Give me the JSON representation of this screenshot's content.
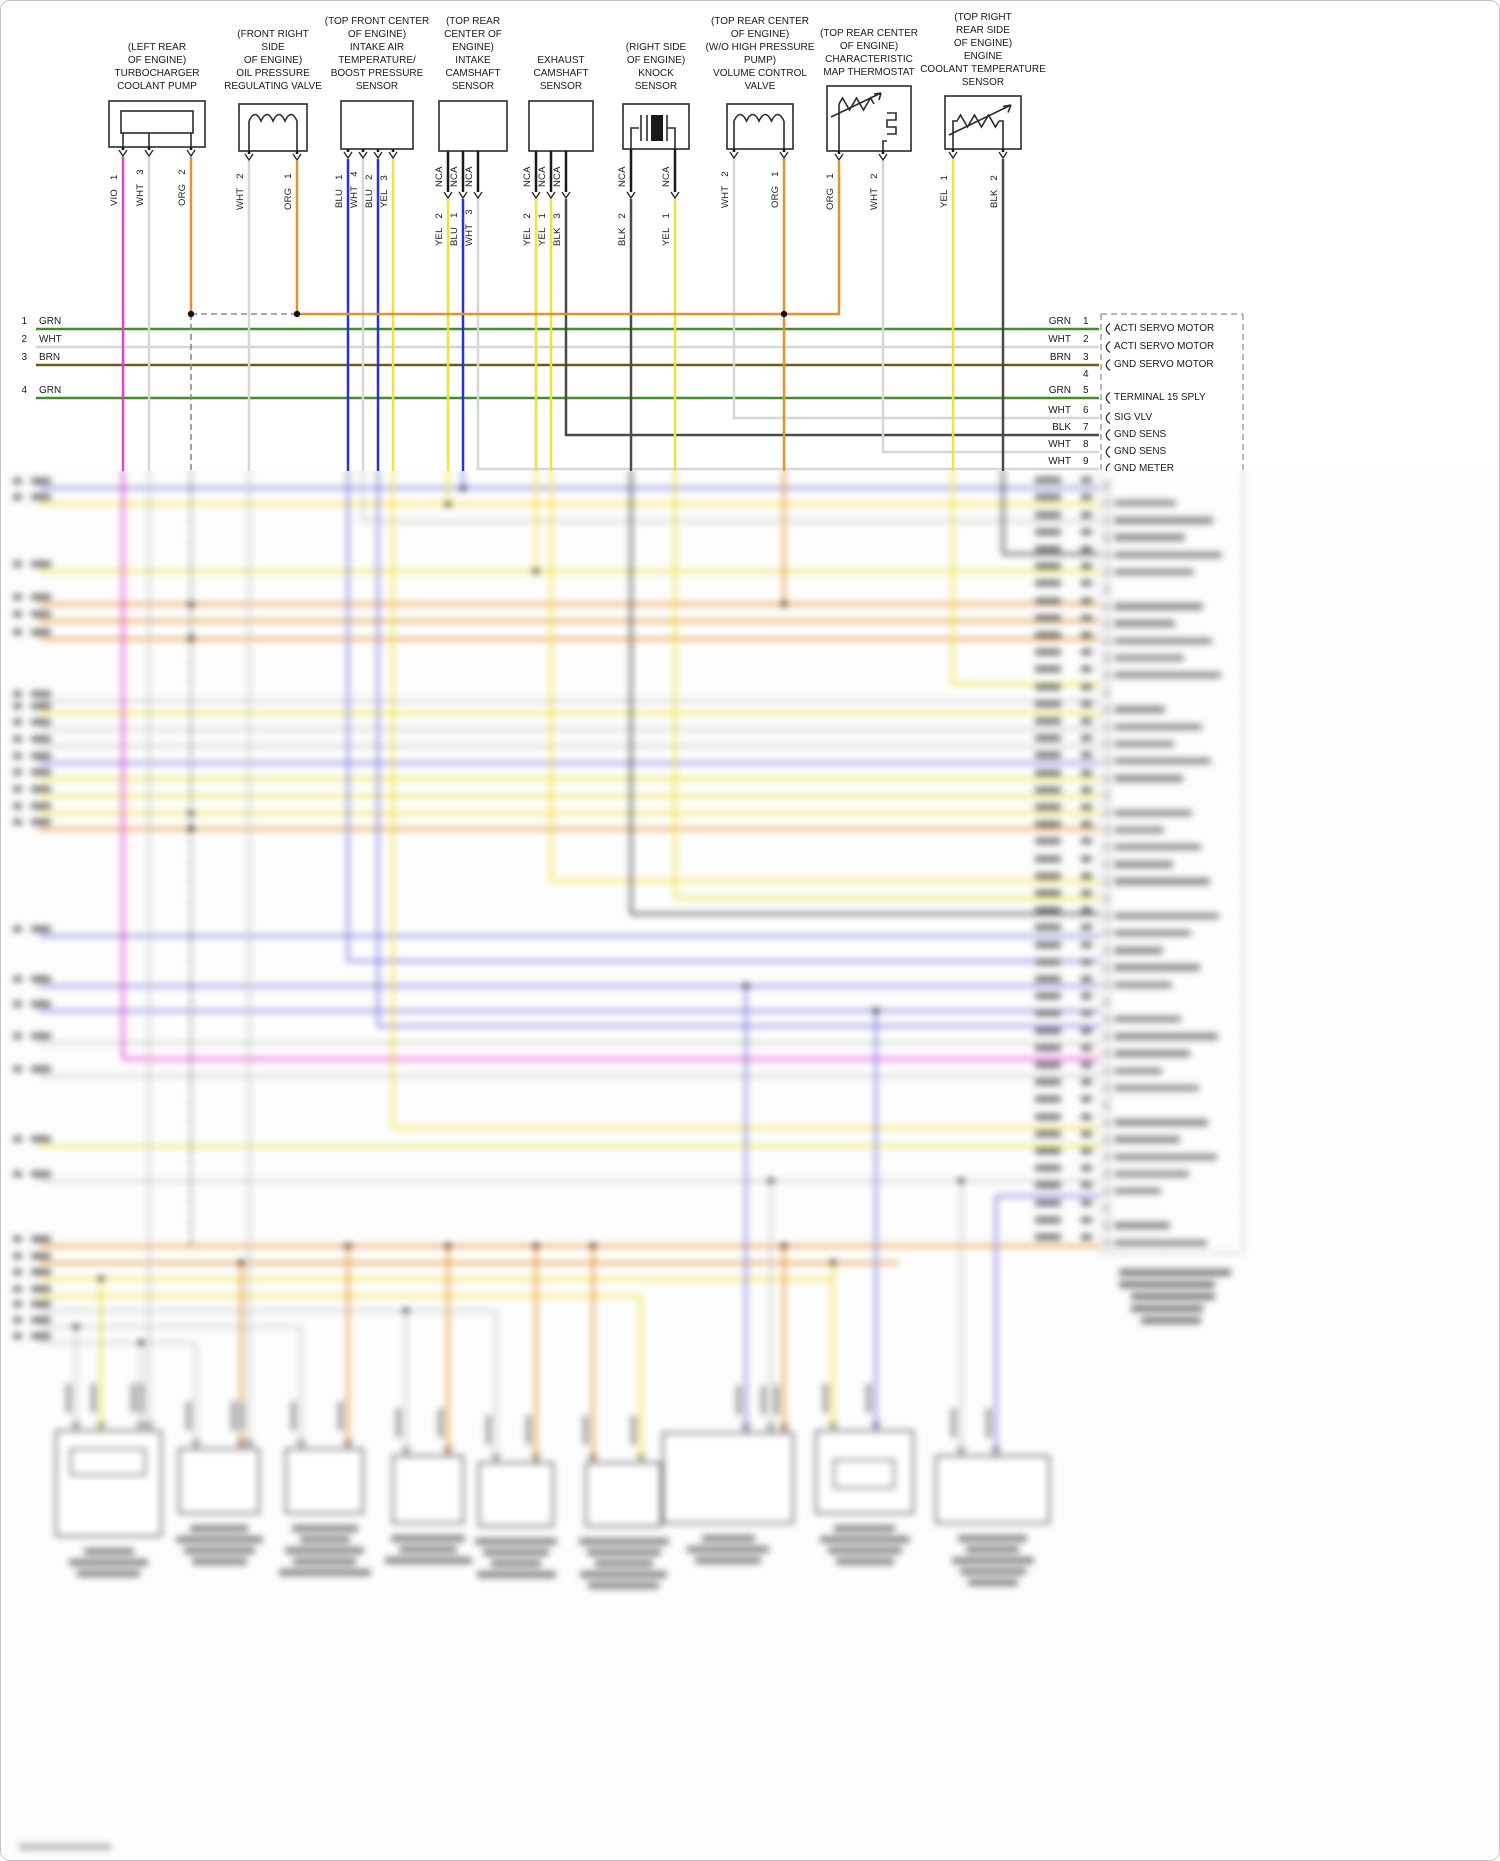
{
  "palette": {
    "grn": "#3f8f28",
    "wht": "#d6d6d6",
    "brn": "#6b5a1a",
    "vio": "#e83fd0",
    "org": "#e6912e",
    "blu": "#2733cc",
    "blu2": "#8080e0",
    "yel": "#f1e13d",
    "blk": "#4a4a4a",
    "gry": "#cdcdcd",
    "dash": "#8a8a8a",
    "line": "#2b2b2b"
  },
  "components": [
    {
      "title": "(LEFT REAR\nOF ENGINE)\nTURBOCHARGER\nCOOLANT PUMP",
      "pins": [
        {
          "color": "VIO",
          "num": "1"
        },
        {
          "color": "WHT",
          "num": "3"
        },
        {
          "color": "ORG",
          "num": "2"
        }
      ]
    },
    {
      "title": "(FRONT RIGHT\nSIDE\nOF ENGINE)\nOIL PRESSURE\nREGULATING VALVE",
      "pins": [
        {
          "color": "WHT",
          "num": "2"
        },
        {
          "color": "ORG",
          "num": "1"
        }
      ]
    },
    {
      "title": "(TOP FRONT CENTER\nOF ENGINE)\nINTAKE AIR\nTEMPERATURE/\nBOOST PRESSURE\nSENSOR",
      "pins": [
        {
          "color": "BLU",
          "num": "1"
        },
        {
          "color": "WHT",
          "num": "4"
        },
        {
          "color": "BLU",
          "num": "2"
        },
        {
          "color": "YEL",
          "num": "3"
        }
      ]
    },
    {
      "title": "(TOP REAR\nCENTER OF\nENGINE)\nINTAKE\nCAMSHAFT\nSENSOR",
      "pins_top": [
        "NCA",
        "NCA",
        "NCA"
      ],
      "pins": [
        {
          "color": "YEL",
          "num": "2"
        },
        {
          "color": "BLU",
          "num": "1"
        },
        {
          "color": "WHT",
          "num": "3"
        }
      ]
    },
    {
      "title": "EXHAUST\nCAMSHAFT\nSENSOR",
      "pins_top": [
        "NCA",
        "NCA",
        "NCA"
      ],
      "pins": [
        {
          "color": "YEL",
          "num": "2"
        },
        {
          "color": "YEL",
          "num": "1"
        },
        {
          "color": "BLK",
          "num": "3"
        }
      ]
    },
    {
      "title": "(RIGHT SIDE\nOF ENGINE)\nKNOCK\nSENSOR",
      "pins_top": [
        "NCA",
        "NCA"
      ],
      "pins": [
        {
          "color": "BLK",
          "num": "2"
        },
        {
          "color": "YEL",
          "num": "1"
        }
      ]
    },
    {
      "title": "(TOP REAR CENTER\nOF ENGINE)\n(W/O HIGH PRESSURE\nPUMP)\nVOLUME CONTROL\nVALVE",
      "pins": [
        {
          "color": "WHT",
          "num": "2"
        },
        {
          "color": "ORG",
          "num": "1"
        }
      ]
    },
    {
      "title": "(TOP REAR CENTER\nOF ENGINE)\nCHARACTERISTIC\nMAP THERMOSTAT",
      "pins": [
        {
          "color": "ORG",
          "num": "1"
        },
        {
          "color": "WHT",
          "num": "2"
        }
      ]
    },
    {
      "title": "(TOP RIGHT\nREAR SIDE\nOF ENGINE)\nENGINE\nCOOLANT TEMPERATURE\nSENSOR",
      "pins": [
        {
          "color": "YEL",
          "num": "1"
        },
        {
          "color": "BLK",
          "num": "2"
        }
      ]
    }
  ],
  "left_rows": [
    {
      "num": "1",
      "color": "GRN"
    },
    {
      "num": "2",
      "color": "WHT"
    },
    {
      "num": "3",
      "color": "BRN"
    },
    {
      "num": "4",
      "color": "GRN"
    }
  ],
  "right_connector": {
    "rows": [
      {
        "color": "GRN",
        "num": "1",
        "label": "ACTI SERVO MOTOR"
      },
      {
        "color": "WHT",
        "num": "2",
        "label": "ACTI SERVO MOTOR"
      },
      {
        "color": "BRN",
        "num": "3",
        "label": "GND SERVO MOTOR"
      },
      {
        "color": "",
        "num": "4",
        "label": ""
      },
      {
        "color": "GRN",
        "num": "5",
        "label": "TERMINAL 15 SPLY"
      },
      {
        "color": "WHT",
        "num": "6",
        "label": "SIG VLV"
      },
      {
        "color": "BLK",
        "num": "7",
        "label": "GND SENS"
      },
      {
        "color": "WHT",
        "num": "8",
        "label": "GND SENS"
      },
      {
        "color": "WHT",
        "num": "9",
        "label": "GND METER"
      }
    ]
  }
}
